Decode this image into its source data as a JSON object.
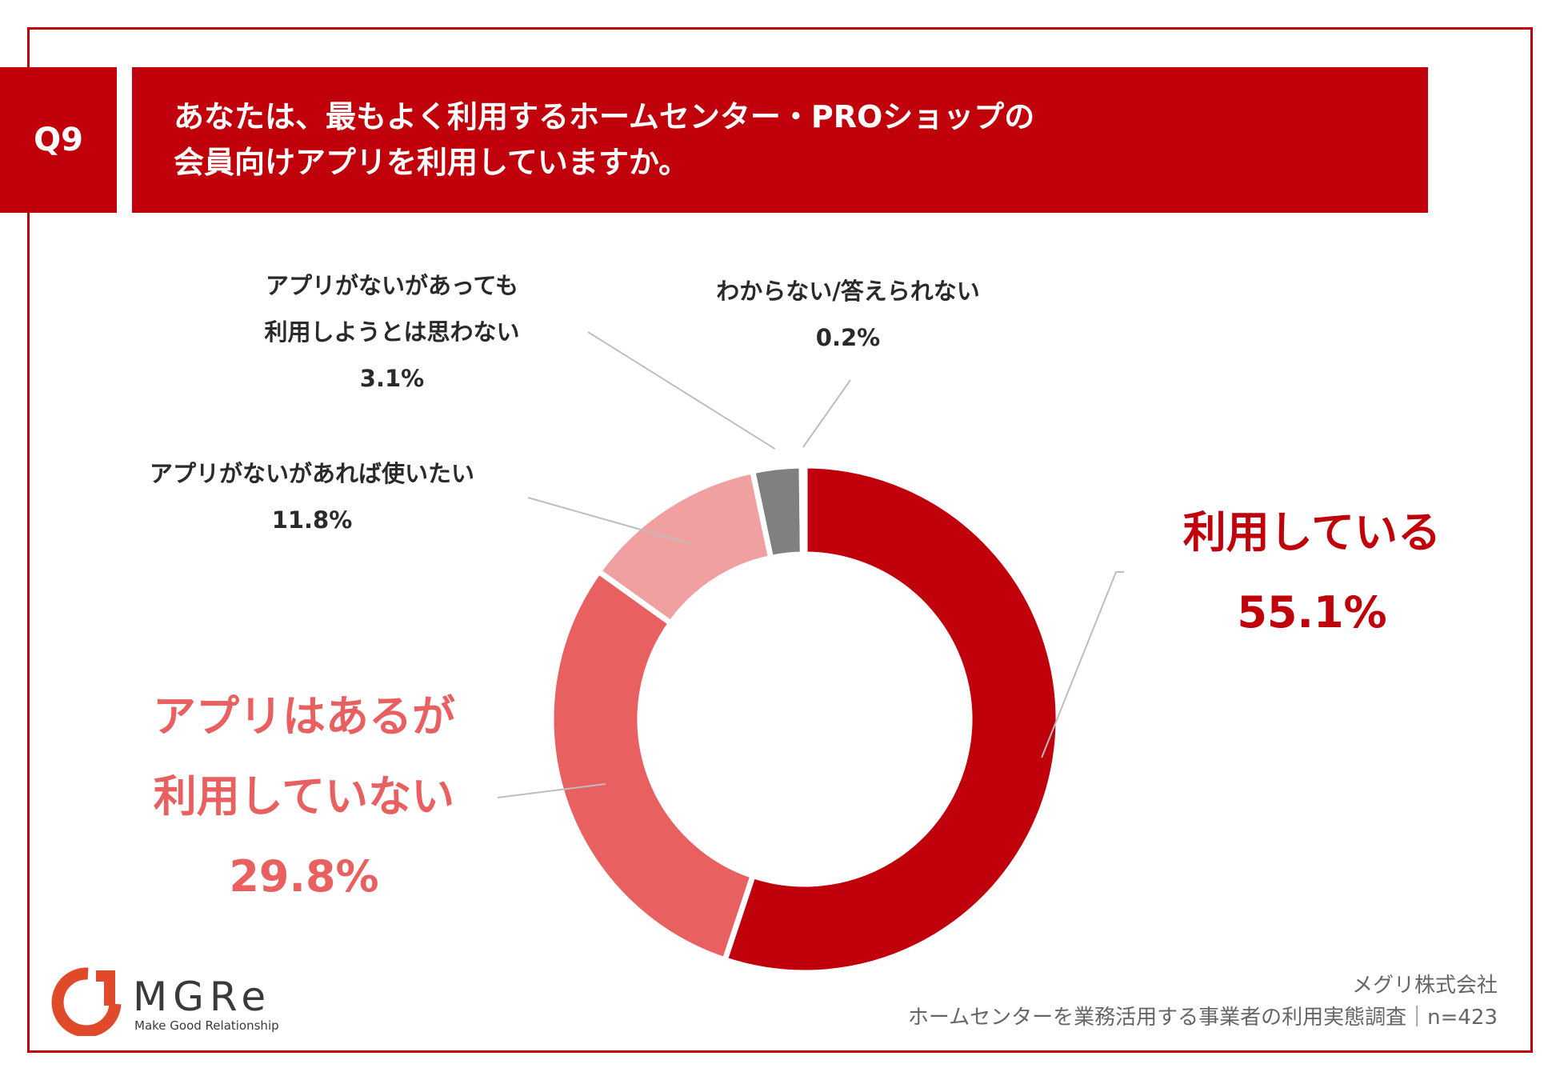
{
  "header": {
    "badge": "Q9",
    "title_line1": "あなたは、最もよく利用するホームセンター・PROショップの",
    "title_line2": "会員向けアプリを利用していますか。"
  },
  "colors": {
    "brand_red": "#c0000b",
    "series": [
      "#c0000b",
      "#e86060",
      "#f0a0a0",
      "#808080",
      "#b0b0b0"
    ]
  },
  "chart_data": {
    "type": "pie",
    "style": "donut",
    "categories": [
      "利用している",
      "アプリはあるが利用していない",
      "アプリがないがあれば使いたい",
      "アプリがないがあっても利用しようとは思わない",
      "わからない/答えられない"
    ],
    "values": [
      55.1,
      29.8,
      11.8,
      3.1,
      0.2
    ],
    "labels": [
      {
        "lines": [
          "利用している"
        ],
        "value": "55.1%"
      },
      {
        "lines": [
          "アプリはあるが",
          "利用していない"
        ],
        "value": "29.8%"
      },
      {
        "lines": [
          "アプリがないがあれば使いたい"
        ],
        "value": "11.8%"
      },
      {
        "lines": [
          "アプリがないがあっても",
          "利用しようとは思わない"
        ],
        "value": "3.1%"
      },
      {
        "lines": [
          "わからない/答えられない"
        ],
        "value": "0.2%"
      }
    ]
  },
  "logo": {
    "name": "MGRe",
    "tagline": "Make Good Relationship"
  },
  "source": {
    "company": "メグリ株式会社",
    "survey": "ホームセンターを業務活用する事業者の利用実態調査｜n=423"
  }
}
